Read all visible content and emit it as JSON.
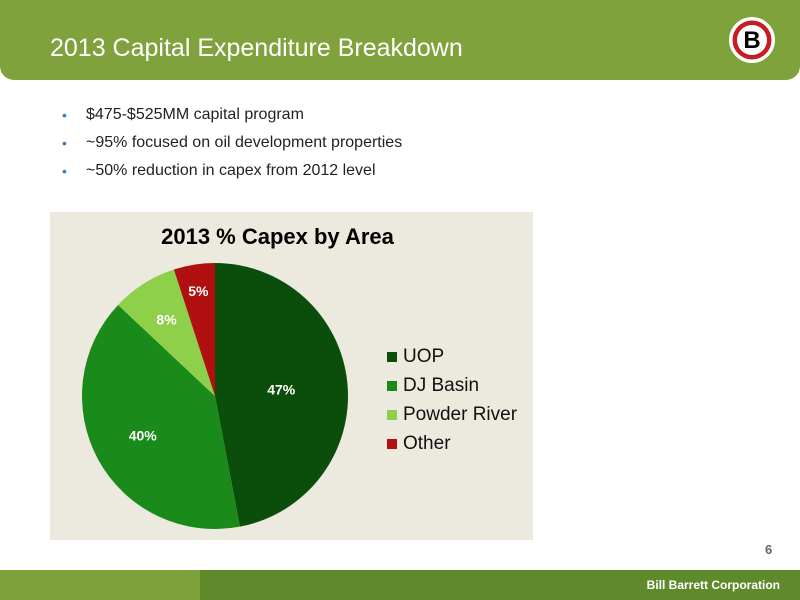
{
  "slide": {
    "title": "2013 Capital Expenditure Breakdown",
    "page_number": "6",
    "company": "Bill Barrett Corporation",
    "logo_letter": "B",
    "bullets": [
      "$475-$525MM capital program",
      "~95% focused on oil development properties",
      "~50% reduction in capex from 2012 level"
    ]
  },
  "colors": {
    "header": "#7fa23c",
    "bullet": "#3b7fb6",
    "chart_bg": "#ece9de"
  },
  "chart_data": {
    "type": "pie",
    "title": "2013 % Capex by Area",
    "legend_position": "right",
    "series": [
      {
        "name": "UOP",
        "value": 47,
        "label": "47%",
        "color": "#0b4d0b"
      },
      {
        "name": "DJ Basin",
        "value": 40,
        "label": "40%",
        "color": "#1a8a1a"
      },
      {
        "name": "Powder River",
        "value": 8,
        "label": "8%",
        "color": "#8fd04a"
      },
      {
        "name": "Other",
        "value": 5,
        "label": "5%",
        "color": "#b01010"
      }
    ]
  }
}
